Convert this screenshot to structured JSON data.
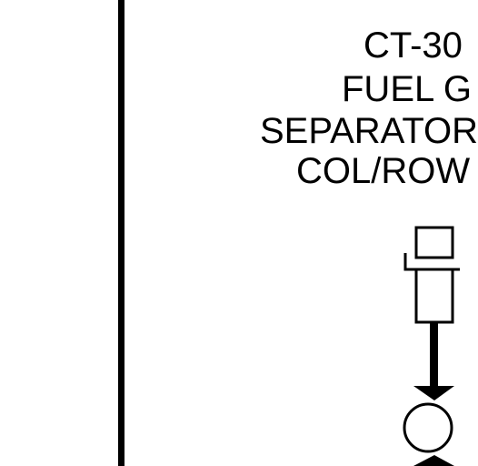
{
  "label": {
    "line1": "CT-30",
    "line2": "FUEL G",
    "line3": "SEPARATOR",
    "line4": "COL/ROW"
  },
  "colors": {
    "ink": "#000000",
    "background": "#ffffff"
  },
  "symbols": [
    "fuel-separator-symbol",
    "valve-symbol",
    "pipe-line"
  ]
}
